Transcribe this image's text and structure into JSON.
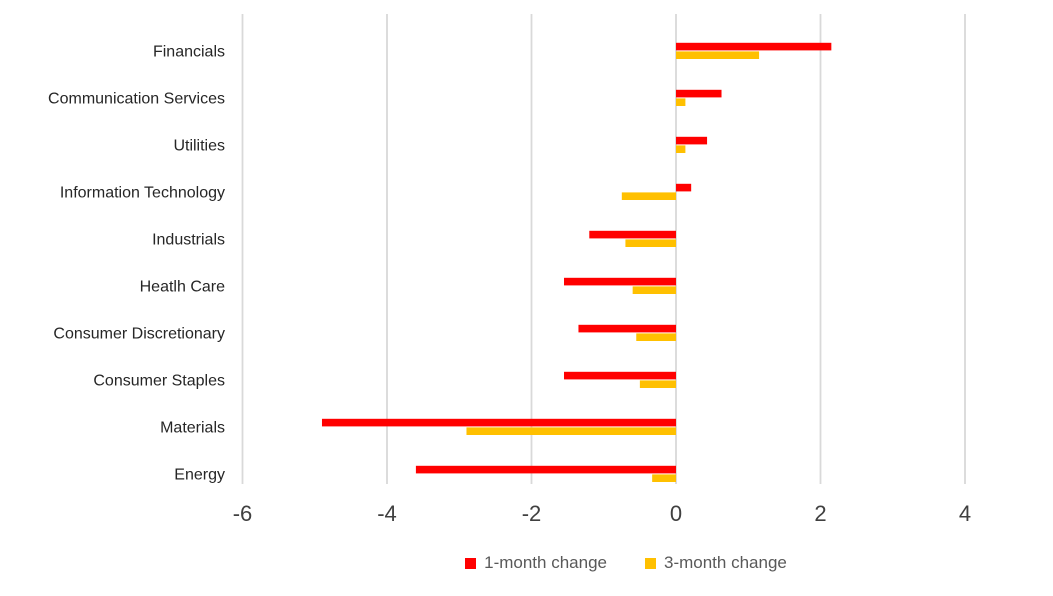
{
  "chart_data": {
    "type": "bar",
    "orientation": "horizontal",
    "title": "",
    "xlabel": "",
    "ylabel": "",
    "categories": [
      "Financials",
      "Communication Services",
      "Utilities",
      "Information Technology",
      "Industrials",
      "Heatlh Care",
      "Consumer Discretionary",
      "Consumer Staples",
      "Materials",
      "Energy"
    ],
    "series": [
      {
        "name": "1-month change",
        "color": "#FF0000",
        "values": [
          2.15,
          0.63,
          0.43,
          0.21,
          -1.2,
          -1.55,
          -1.35,
          -1.55,
          -4.9,
          -3.6
        ]
      },
      {
        "name": "3-month change",
        "color": "#FFC000",
        "values": [
          1.15,
          0.13,
          0.13,
          -0.75,
          -0.7,
          -0.6,
          -0.55,
          -0.5,
          -2.9,
          -0.33
        ]
      }
    ],
    "xlim": [
      -6,
      4
    ],
    "xticks": [
      "-6",
      "-4",
      "-2",
      "0",
      "2",
      "4"
    ],
    "xtick_values": [
      -6,
      -4,
      -2,
      0,
      2,
      4
    ],
    "grid": true,
    "gridline_color": "#D9D9D9",
    "legend_position": "bottom"
  }
}
